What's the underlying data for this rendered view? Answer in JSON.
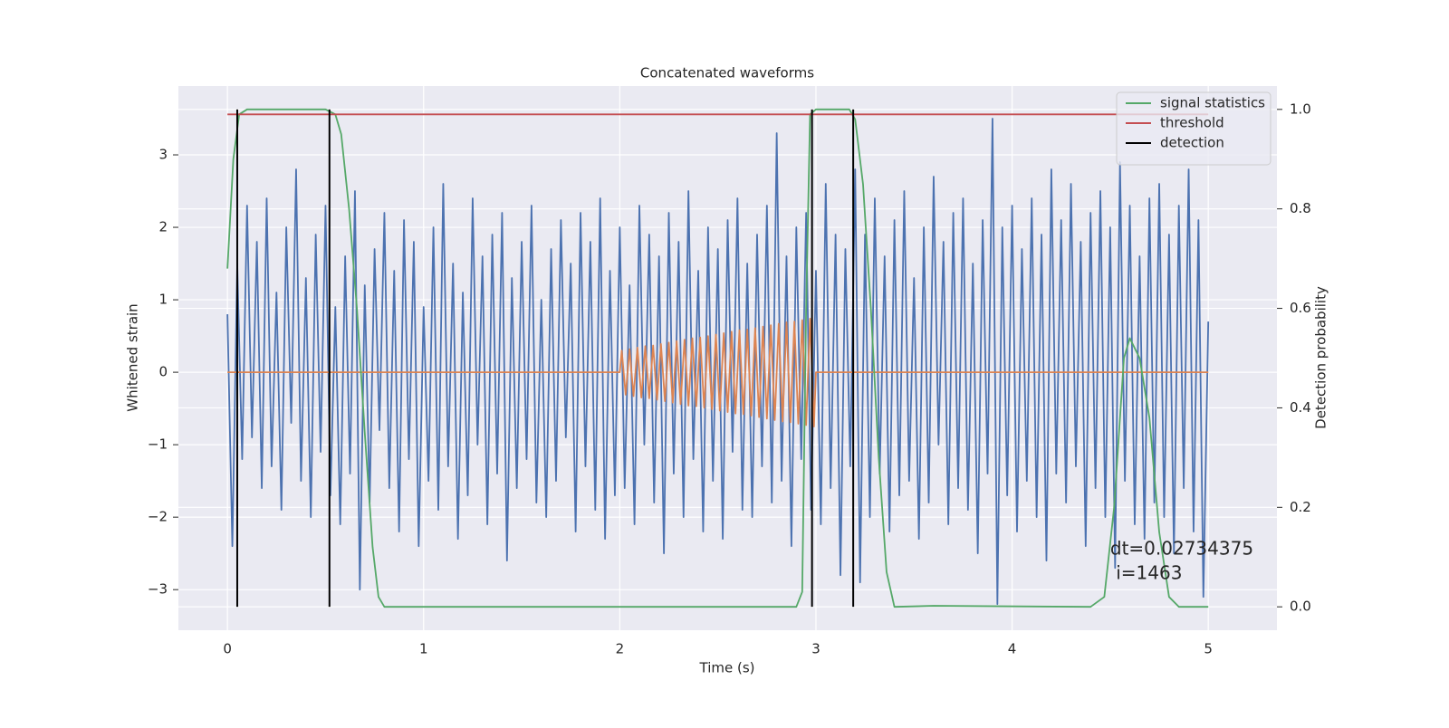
{
  "chart_data": {
    "type": "line",
    "title": "Concatenated waveforms",
    "xlabel": "Time (s)",
    "ylabel": "Whitened strain",
    "y2label": "Detection probability",
    "xlim": [
      -0.25,
      5.35
    ],
    "ylim": [
      -3.56,
      3.95
    ],
    "y2lim": [
      -0.047,
      1.047
    ],
    "xticks": [
      0,
      1,
      2,
      3,
      4,
      5
    ],
    "yticks": [
      {
        "value": -3,
        "label": "−3"
      },
      {
        "value": -2,
        "label": "−2"
      },
      {
        "value": -1,
        "label": "−1"
      },
      0,
      1,
      2,
      3
    ],
    "y2ticks": [
      {
        "value": 0,
        "label": "0.0"
      },
      0.2,
      0.4,
      0.6,
      0.8,
      {
        "value": 1,
        "label": "1.0"
      }
    ],
    "grid": true,
    "legend": "upper right",
    "series": [
      {
        "color": "#4c72b0",
        "x": [
          0,
          0.025,
          0.05,
          0.075,
          0.1,
          0.125,
          0.15,
          0.175,
          0.2,
          0.225,
          0.25,
          0.275,
          0.3,
          0.325,
          0.35,
          0.375,
          0.4,
          0.425,
          0.45,
          0.475,
          0.5,
          0.525,
          0.55,
          0.575,
          0.6,
          0.625,
          0.65,
          0.675,
          0.7,
          0.725,
          0.75,
          0.775,
          0.8,
          0.825,
          0.85,
          0.875,
          0.9,
          0.925,
          0.95,
          0.975,
          1,
          1.025,
          1.05,
          1.075,
          1.1,
          1.125,
          1.15,
          1.175,
          1.2,
          1.225,
          1.25,
          1.275,
          1.3,
          1.325,
          1.35,
          1.375,
          1.4,
          1.425,
          1.45,
          1.475,
          1.5,
          1.525,
          1.55,
          1.575,
          1.6,
          1.625,
          1.65,
          1.675,
          1.7,
          1.725,
          1.75,
          1.775,
          1.8,
          1.825,
          1.85,
          1.875,
          1.9,
          1.925,
          1.95,
          1.975,
          2,
          2.025,
          2.05,
          2.075,
          2.1,
          2.125,
          2.15,
          2.175,
          2.2,
          2.225,
          2.25,
          2.275,
          2.3,
          2.325,
          2.35,
          2.375,
          2.4,
          2.425,
          2.45,
          2.475,
          2.5,
          2.525,
          2.55,
          2.575,
          2.6,
          2.625,
          2.65,
          2.675,
          2.7,
          2.725,
          2.75,
          2.775,
          2.8,
          2.825,
          2.85,
          2.875,
          2.9,
          2.925,
          2.95,
          2.975,
          3,
          3.025,
          3.05,
          3.075,
          3.1,
          3.125,
          3.15,
          3.175,
          3.2,
          3.225,
          3.25,
          3.275,
          3.3,
          3.325,
          3.35,
          3.375,
          3.4,
          3.425,
          3.45,
          3.475,
          3.5,
          3.525,
          3.55,
          3.575,
          3.6,
          3.625,
          3.65,
          3.675,
          3.7,
          3.725,
          3.75,
          3.775,
          3.8,
          3.825,
          3.85,
          3.875,
          3.9,
          3.925,
          3.95,
          3.975,
          4,
          4.025,
          4.05,
          4.075,
          4.1,
          4.125,
          4.15,
          4.175,
          4.2,
          4.225,
          4.25,
          4.275,
          4.3,
          4.325,
          4.35,
          4.375,
          4.4,
          4.425,
          4.45,
          4.475,
          4.5,
          4.525,
          4.55,
          4.575,
          4.6,
          4.625,
          4.65,
          4.675,
          4.7,
          4.725,
          4.75,
          4.775,
          4.8,
          4.825,
          4.85,
          4.875,
          4.9,
          4.925,
          4.95,
          4.975,
          5
        ],
        "values": [
          0.8,
          -2.4,
          1.5,
          -1.2,
          2.3,
          -0.9,
          1.8,
          -1.6,
          2.4,
          -1.3,
          1.1,
          -1.9,
          2.0,
          -0.7,
          2.8,
          -1.5,
          1.3,
          -2.0,
          1.9,
          -1.1,
          2.3,
          -1.7,
          0.9,
          -2.1,
          1.6,
          -1.4,
          2.5,
          -3.0,
          1.2,
          -1.8,
          1.7,
          -0.8,
          2.2,
          -1.6,
          1.4,
          -2.2,
          2.1,
          -1.2,
          1.8,
          -2.4,
          0.9,
          -1.5,
          2.0,
          -1.9,
          2.6,
          -1.3,
          1.5,
          -2.3,
          1.1,
          -1.7,
          2.4,
          -1.0,
          1.6,
          -2.1,
          1.9,
          -1.4,
          2.2,
          -2.6,
          1.3,
          -1.6,
          1.8,
          -1.2,
          2.3,
          -1.8,
          1.0,
          -2.0,
          1.7,
          -1.5,
          2.1,
          -0.9,
          1.5,
          -2.2,
          2.2,
          -1.3,
          1.8,
          -1.9,
          2.4,
          -2.3,
          1.4,
          -1.7,
          2.0,
          -1.6,
          1.2,
          -2.1,
          2.3,
          -1.0,
          1.9,
          -1.8,
          1.6,
          -2.5,
          2.2,
          -1.4,
          1.8,
          -2.0,
          2.5,
          -1.2,
          1.4,
          -2.2,
          2.0,
          -1.5,
          1.7,
          -2.3,
          2.1,
          -1.1,
          2.4,
          -1.9,
          1.5,
          -2.0,
          1.9,
          -1.3,
          2.3,
          -1.8,
          3.3,
          -1.5,
          1.6,
          -2.4,
          2.0,
          -1.2,
          2.2,
          -1.9,
          1.4,
          -2.1,
          2.6,
          -1.6,
          1.9,
          -2.8,
          1.7,
          -1.3,
          2.8,
          -2.9,
          1.9,
          -2.0,
          2.4,
          -1.4,
          1.6,
          -2.2,
          2.1,
          -1.7,
          2.5,
          -1.5,
          1.3,
          -2.3,
          2.0,
          -1.8,
          2.7,
          -1.0,
          1.8,
          -2.1,
          2.2,
          -1.6,
          2.4,
          -1.9,
          1.5,
          -2.5,
          2.1,
          -1.4,
          3.5,
          -3.2,
          2.0,
          -1.7,
          2.3,
          -2.2,
          1.7,
          -1.5,
          2.4,
          -2.0,
          1.9,
          -2.6,
          2.8,
          -1.4,
          2.1,
          -1.8,
          2.6,
          -1.3,
          1.8,
          -2.4,
          2.2,
          -1.6,
          2.5,
          -2.0,
          2.0,
          -2.7,
          2.9,
          -1.5,
          2.3,
          -2.1,
          1.6,
          -2.3,
          2.4,
          -1.8,
          2.6,
          -2.0,
          1.9,
          -2.5,
          2.3,
          -1.6,
          2.8,
          -2.2,
          2.1,
          -3.1,
          0.7
        ]
      },
      {
        "color": "#dd8452",
        "x": [
          0,
          2,
          2.01,
          2.03,
          2.05,
          2.07,
          2.09,
          2.11,
          2.13,
          2.15,
          2.17,
          2.19,
          2.21,
          2.23,
          2.25,
          2.27,
          2.29,
          2.31,
          2.33,
          2.35,
          2.37,
          2.39,
          2.41,
          2.43,
          2.45,
          2.47,
          2.49,
          2.51,
          2.53,
          2.55,
          2.57,
          2.59,
          2.61,
          2.63,
          2.65,
          2.67,
          2.69,
          2.71,
          2.73,
          2.75,
          2.77,
          2.79,
          2.81,
          2.83,
          2.85,
          2.87,
          2.89,
          2.91,
          2.93,
          2.95,
          2.97,
          2.99,
          3,
          5
        ],
        "values": [
          0,
          0,
          0.3,
          -0.31,
          0.32,
          -0.33,
          0.34,
          -0.35,
          0.36,
          -0.36,
          0.37,
          -0.38,
          0.39,
          -0.4,
          0.41,
          -0.42,
          0.43,
          -0.44,
          0.45,
          -0.46,
          0.47,
          -0.47,
          0.48,
          -0.49,
          0.5,
          -0.51,
          0.52,
          -0.53,
          0.54,
          -0.55,
          0.56,
          -0.57,
          0.58,
          -0.58,
          0.59,
          -0.6,
          0.61,
          -0.62,
          0.63,
          -0.64,
          0.65,
          -0.66,
          0.67,
          -0.68,
          0.69,
          -0.69,
          0.7,
          -0.71,
          0.72,
          -0.73,
          0.74,
          -0.75,
          0,
          0
        ]
      },
      {
        "name": "signal statistics",
        "color": "#55a868",
        "axis": "y2",
        "x": [
          0,
          0.03,
          0.06,
          0.1,
          0.5,
          0.55,
          0.58,
          0.62,
          0.66,
          0.7,
          0.74,
          0.77,
          0.8,
          2.9,
          2.93,
          2.95,
          2.97,
          3.0,
          3.17,
          3.2,
          3.24,
          3.28,
          3.32,
          3.36,
          3.4,
          3.6,
          4.4,
          4.47,
          4.52,
          4.57,
          4.6,
          4.65,
          4.7,
          4.75,
          4.8,
          4.85,
          5.0
        ],
        "values": [
          0.68,
          0.9,
          0.99,
          1.0,
          1.0,
          0.99,
          0.95,
          0.8,
          0.6,
          0.35,
          0.12,
          0.02,
          0.0,
          0.0,
          0.03,
          0.6,
          0.99,
          1.0,
          1.0,
          0.98,
          0.85,
          0.6,
          0.3,
          0.07,
          0.0,
          0.002,
          0.0,
          0.02,
          0.2,
          0.5,
          0.54,
          0.5,
          0.38,
          0.15,
          0.02,
          0.0,
          0.0
        ]
      },
      {
        "name": "threshold",
        "color": "#c44e52",
        "axis": "y2",
        "x": [
          0,
          5
        ],
        "values": [
          0.99,
          0.99
        ]
      }
    ],
    "detections": {
      "name": "detection",
      "color": "#000000",
      "x": [
        0.05,
        0.52,
        2.98,
        3.19
      ]
    },
    "annotation": {
      "x": 4.5,
      "y": -2.45,
      "lines": [
        "dt=0.02734375",
        " i=1463"
      ]
    }
  }
}
